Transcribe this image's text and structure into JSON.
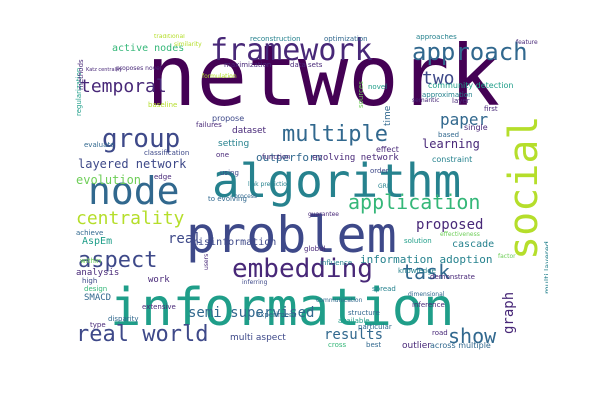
{
  "colors": {
    "background": "#ffffff",
    "palette": [
      "#440154",
      "#482878",
      "#3e4989",
      "#31688e",
      "#26828e",
      "#1f9e89",
      "#35b779",
      "#6ece58",
      "#b5de2b"
    ]
  },
  "words": [
    {
      "text": "network",
      "color": "#440154"
    },
    {
      "text": "information",
      "color": "#1f9e89"
    },
    {
      "text": "problem",
      "color": "#3e4989"
    },
    {
      "text": "algorithm",
      "color": "#26828e"
    },
    {
      "text": "social",
      "color": "#b5de2b"
    },
    {
      "text": "node",
      "color": "#31688e"
    },
    {
      "text": "framework",
      "color": "#482878"
    },
    {
      "text": "group",
      "color": "#3e4989"
    },
    {
      "text": "approach",
      "color": "#31688e"
    },
    {
      "text": "embedding",
      "color": "#482878"
    },
    {
      "text": "real world",
      "color": "#3e4989"
    },
    {
      "text": "aspect",
      "color": "#3e4989"
    },
    {
      "text": "multiple",
      "color": "#31688e"
    },
    {
      "text": "application",
      "color": "#35b779"
    },
    {
      "text": "temporal",
      "color": "#482878"
    },
    {
      "text": "centrality",
      "color": "#b5de2b"
    },
    {
      "text": "task",
      "color": "#31688e"
    },
    {
      "text": "show",
      "color": "#31688e"
    },
    {
      "text": "two",
      "color": "#3e4989"
    },
    {
      "text": "paper",
      "color": "#31688e"
    },
    {
      "text": "graph",
      "color": "#482878"
    },
    {
      "text": "layered network",
      "color": "#3e4989"
    },
    {
      "text": "semi supervised",
      "color": "#31688e"
    },
    {
      "text": "results",
      "color": "#31688e"
    },
    {
      "text": "real",
      "color": "#3e4989"
    },
    {
      "text": "proposed",
      "color": "#482878"
    },
    {
      "text": "learning",
      "color": "#482878"
    },
    {
      "text": "evolution",
      "color": "#6ece58"
    },
    {
      "text": "information adoption",
      "color": "#26828e"
    },
    {
      "text": "active nodes",
      "color": "#35b779"
    },
    {
      "text": "outperform",
      "color": "#31688e"
    },
    {
      "text": "evolving network",
      "color": "#482878"
    },
    {
      "text": "misinformation",
      "color": "#3e4989"
    },
    {
      "text": "cascade",
      "color": "#26828e"
    },
    {
      "text": "AspEm",
      "color": "#1f9e89"
    },
    {
      "text": "SMACD",
      "color": "#31688e"
    },
    {
      "text": "analysis",
      "color": "#482878"
    },
    {
      "text": "work",
      "color": "#482878"
    },
    {
      "text": "community detection",
      "color": "#1f9e89"
    },
    {
      "text": "relational learning",
      "color": "#35b779"
    },
    {
      "text": "multi layered",
      "color": "#26828e"
    },
    {
      "text": "setting",
      "color": "#26828e"
    },
    {
      "text": "dataset",
      "color": "#482878"
    },
    {
      "text": "propose",
      "color": "#3e4989"
    },
    {
      "text": "time",
      "color": "#31688e"
    },
    {
      "text": "single",
      "color": "#482878"
    },
    {
      "text": "constraint",
      "color": "#26828e"
    },
    {
      "text": "multi aspect",
      "color": "#3e4989"
    },
    {
      "text": "outlier",
      "color": "#482878"
    },
    {
      "text": "across multiple",
      "color": "#31688e"
    },
    {
      "text": "particular",
      "color": "#31688e"
    },
    {
      "text": "reconstruction",
      "color": "#26828e"
    },
    {
      "text": "optimization",
      "color": "#31688e"
    },
    {
      "text": "maximization",
      "color": "#482878"
    },
    {
      "text": "data sets",
      "color": "#482878"
    },
    {
      "text": "approaches",
      "color": "#26828e"
    },
    {
      "text": "approximation",
      "color": "#26828e"
    },
    {
      "text": "solution",
      "color": "#1f9e89"
    },
    {
      "text": "knowledge",
      "color": "#26828e"
    },
    {
      "text": "demonstrate",
      "color": "#482878"
    },
    {
      "text": "inference",
      "color": "#482878"
    },
    {
      "text": "extensive",
      "color": "#482878"
    },
    {
      "text": "experiment",
      "color": "#31688e"
    },
    {
      "text": "function",
      "color": "#482878"
    },
    {
      "text": "classification",
      "color": "#3e4989"
    },
    {
      "text": "evaluate",
      "color": "#31688e"
    },
    {
      "text": "edge",
      "color": "#482878"
    },
    {
      "text": "spread",
      "color": "#26828e"
    },
    {
      "text": "best",
      "color": "#31688e"
    },
    {
      "text": "road",
      "color": "#482878"
    },
    {
      "text": "cross",
      "color": "#35b779"
    },
    {
      "text": "high",
      "color": "#3e4989"
    },
    {
      "text": "type",
      "color": "#482878"
    },
    {
      "text": "design",
      "color": "#35b779"
    },
    {
      "text": "within",
      "color": "#6ece58"
    },
    {
      "text": "achieve",
      "color": "#31688e"
    },
    {
      "text": "novel",
      "color": "#1f9e89"
    },
    {
      "text": "effect",
      "color": "#482878"
    },
    {
      "text": "layer",
      "color": "#482878"
    },
    {
      "text": "based",
      "color": "#31688e"
    },
    {
      "text": "global",
      "color": "#482878"
    },
    {
      "text": "using",
      "color": "#3e4989"
    },
    {
      "text": "influence",
      "color": "#26828e"
    },
    {
      "text": "one",
      "color": "#482878"
    },
    {
      "text": "sources",
      "color": "#6ece58"
    },
    {
      "text": "order",
      "color": "#3e4989"
    },
    {
      "text": "structure",
      "color": "#31688e"
    },
    {
      "text": "available",
      "color": "#1f9e89"
    },
    {
      "text": "first",
      "color": "#482878"
    },
    {
      "text": "regularization",
      "color": "#1f9e89"
    },
    {
      "text": "baseline",
      "color": "#b5de2b"
    },
    {
      "text": "failures",
      "color": "#482878"
    },
    {
      "text": "methods",
      "color": "#482878"
    },
    {
      "text": "to evolving",
      "color": "#31688e"
    },
    {
      "text": "users",
      "color": "#482878"
    },
    {
      "text": "inferring",
      "color": "#3e4989"
    },
    {
      "text": "disparity",
      "color": "#31688e"
    },
    {
      "text": "dimensional",
      "color": "#31688e"
    },
    {
      "text": "factor",
      "color": "#6ece58"
    },
    {
      "text": "link prediction",
      "color": "#26828e"
    },
    {
      "text": "semantic",
      "color": "#482878"
    },
    {
      "text": "guarantee",
      "color": "#482878"
    },
    {
      "text": "communication",
      "color": "#31688e"
    },
    {
      "text": "effectiveness",
      "color": "#6ece58"
    },
    {
      "text": "GRN",
      "color": "#26828e"
    },
    {
      "text": "formulation",
      "color": "#b5de2b"
    },
    {
      "text": "traditional",
      "color": "#b5de2b"
    },
    {
      "text": "similarity",
      "color": "#b5de2b"
    },
    {
      "text": "feature",
      "color": "#482878"
    },
    {
      "text": "process",
      "color": "#31688e"
    },
    {
      "text": "proposes novel",
      "color": "#482878"
    },
    {
      "text": "Katz centrality",
      "color": "#482878"
    }
  ]
}
